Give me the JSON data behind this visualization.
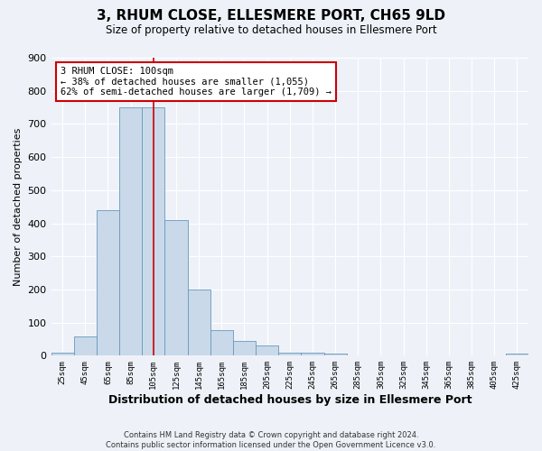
{
  "title": "3, RHUM CLOSE, ELLESMERE PORT, CH65 9LD",
  "subtitle": "Size of property relative to detached houses in Ellesmere Port",
  "xlabel": "Distribution of detached houses by size in Ellesmere Port",
  "ylabel": "Number of detached properties",
  "bar_color": "#c9d9ea",
  "bar_edge_color": "#6699bb",
  "background_color": "#eef2f8",
  "grid_color": "#ffffff",
  "vline_x": 105,
  "vline_color": "#cc0000",
  "bin_edges": [
    15,
    35,
    55,
    75,
    95,
    115,
    135,
    155,
    175,
    195,
    215,
    235,
    255,
    275,
    295,
    315,
    335,
    355,
    375,
    395,
    415,
    435
  ],
  "values": [
    10,
    58,
    440,
    750,
    750,
    410,
    200,
    78,
    45,
    30,
    10,
    8,
    5,
    0,
    0,
    0,
    0,
    0,
    0,
    0,
    5
  ],
  "ylim": [
    0,
    900
  ],
  "yticks": [
    0,
    100,
    200,
    300,
    400,
    500,
    600,
    700,
    800,
    900
  ],
  "xtick_labels": [
    "25sqm",
    "45sqm",
    "65sqm",
    "85sqm",
    "105sqm",
    "125sqm",
    "145sqm",
    "165sqm",
    "185sqm",
    "205sqm",
    "225sqm",
    "245sqm",
    "265sqm",
    "285sqm",
    "305sqm",
    "325sqm",
    "345sqm",
    "365sqm",
    "385sqm",
    "405sqm",
    "425sqm"
  ],
  "xtick_positions": [
    25,
    45,
    65,
    85,
    105,
    125,
    145,
    165,
    185,
    205,
    225,
    245,
    265,
    285,
    305,
    325,
    345,
    365,
    385,
    405,
    425
  ],
  "annotation_title": "3 RHUM CLOSE: 100sqm",
  "annotation_line1": "← 38% of detached houses are smaller (1,055)",
  "annotation_line2": "62% of semi-detached houses are larger (1,709) →",
  "annotation_box_color": "#ffffff",
  "annotation_box_edge": "#cc0000",
  "footer1": "Contains HM Land Registry data © Crown copyright and database right 2024.",
  "footer2": "Contains public sector information licensed under the Open Government Licence v3.0."
}
